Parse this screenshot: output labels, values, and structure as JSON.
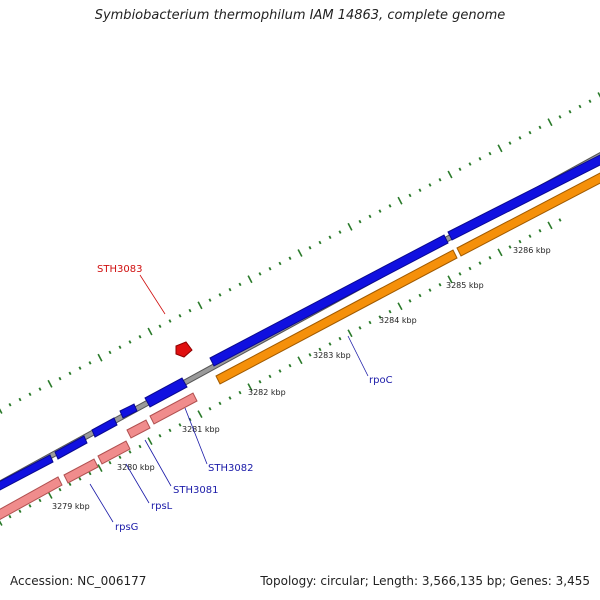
{
  "title": "Symbiobacterium thermophilum IAM 14863, complete genome",
  "footer": {
    "accession_label": "Accession:",
    "accession": "NC_006177",
    "topology": "Topology: circular; Length: 3,566,135 bp; Genes: 3,455"
  },
  "colors": {
    "backbone": "#8c8c8c",
    "forward_gene": "#1010e0",
    "reverse_gene": "#f08c8c",
    "reverse_gene_alt": "#f5900a",
    "feature_red": "#e01010",
    "tick": "#2a7a2a",
    "label_blue": "#1a1aa8",
    "label_red": "#d01010"
  },
  "scale": {
    "unit": "kbp",
    "labels": [
      "3279 kbp",
      "3280 kbp",
      "3281 kbp",
      "3282 kbp",
      "3283 kbp",
      "3284 kbp",
      "3285 kbp",
      "3286 kbp"
    ]
  },
  "genes": [
    {
      "name": "rpsG",
      "color": "blue"
    },
    {
      "name": "rpsL",
      "color": "blue"
    },
    {
      "name": "STH3081",
      "color": "blue"
    },
    {
      "name": "STH3082",
      "color": "blue"
    },
    {
      "name": "rpoC",
      "color": "blue"
    },
    {
      "name": "STH3083",
      "color": "red"
    }
  ]
}
